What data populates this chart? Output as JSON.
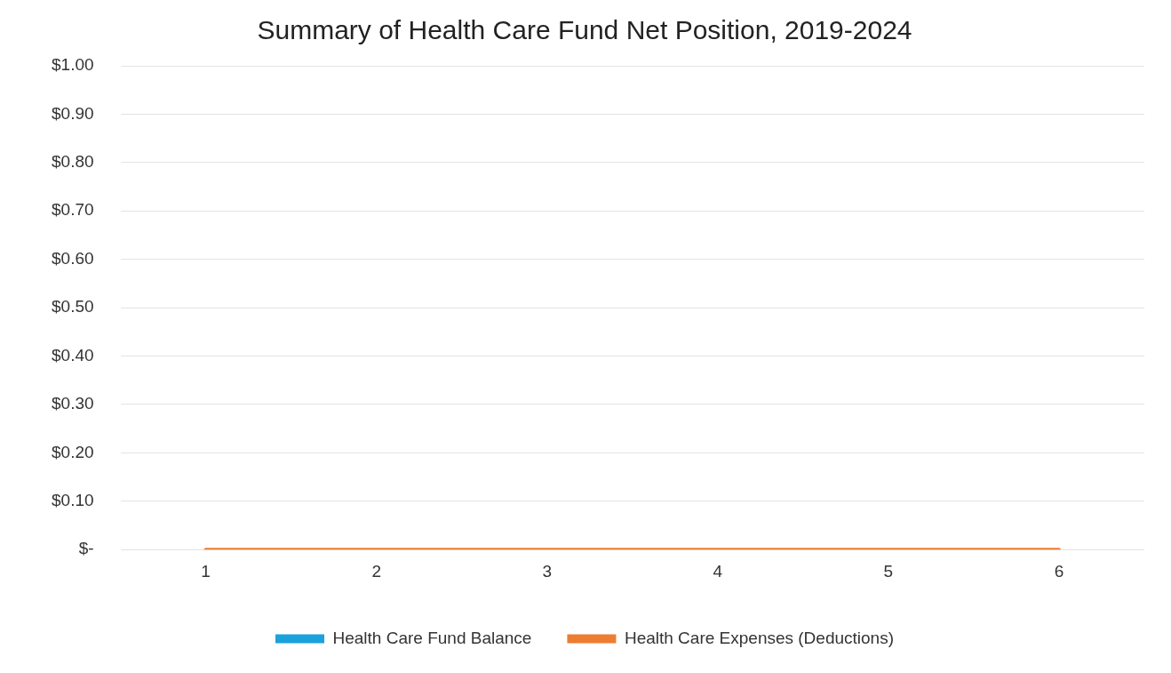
{
  "chart_data": {
    "type": "bar",
    "title": "Summary of Health Care Fund Net Position, 2019-2024",
    "categories": [
      "1",
      "2",
      "3",
      "4",
      "5",
      "6"
    ],
    "series": [
      {
        "name": "Health Care Fund Balance",
        "color": "#1ba1dc",
        "values": [
          0,
          0,
          0,
          0,
          0,
          0
        ]
      },
      {
        "name": "Health Care Expenses (Deductions)",
        "type": "line",
        "color": "#ed7d31",
        "values": [
          0,
          0,
          0,
          0,
          0,
          0
        ]
      }
    ],
    "ylim": [
      0,
      1
    ],
    "yticks": [
      {
        "value": 0,
        "label": "$-"
      },
      {
        "value": 0.1,
        "label": "$0.10"
      },
      {
        "value": 0.2,
        "label": "$0.20"
      },
      {
        "value": 0.3,
        "label": "$0.30"
      },
      {
        "value": 0.4,
        "label": "$0.40"
      },
      {
        "value": 0.5,
        "label": "$0.50"
      },
      {
        "value": 0.6,
        "label": "$0.60"
      },
      {
        "value": 0.7,
        "label": "$0.70"
      },
      {
        "value": 0.8,
        "label": "$0.80"
      },
      {
        "value": 0.9,
        "label": "$0.90"
      },
      {
        "value": 1,
        "label": "$1.00"
      }
    ],
    "grid": "y",
    "legend": "bottom",
    "marker": "none",
    "line_style": "solid"
  }
}
